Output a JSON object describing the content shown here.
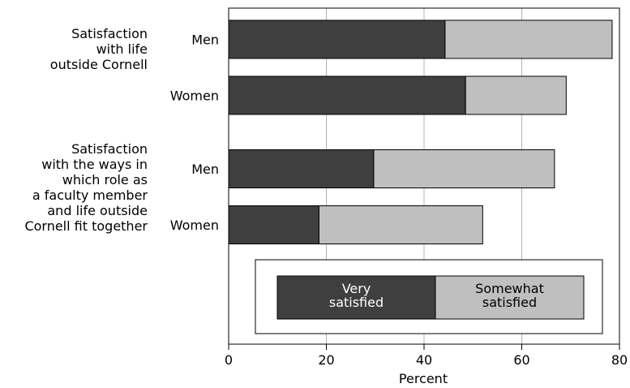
{
  "chart_data": {
    "type": "bar",
    "orientation": "horizontal",
    "stacked": true,
    "xlabel": "Percent",
    "xlim": [
      0,
      80
    ],
    "xticks": [
      "0",
      "20",
      "40",
      "60",
      "80"
    ],
    "grid": true,
    "groups": [
      {
        "label_lines": [
          "Satisfaction",
          "with life",
          "outside Cornell"
        ],
        "categories": [
          "Men",
          "Women"
        ]
      },
      {
        "label_lines": [
          "Satisfaction",
          "with the ways in",
          "which role as",
          "a faculty member",
          "and life outside",
          "Cornell fit together"
        ],
        "categories": [
          "Men",
          "Women"
        ]
      }
    ],
    "series": [
      {
        "name": "Very satisfied",
        "legend_lines": [
          "Very",
          "satisfied"
        ],
        "color": "#3f3f3f",
        "values": [
          44.3,
          48.5,
          29.7,
          18.5
        ]
      },
      {
        "name": "Somewhat satisfied",
        "legend_lines": [
          "Somewhat",
          "satisfied"
        ],
        "color": "#bfbfbf",
        "values": [
          34.2,
          20.6,
          37.0,
          33.5
        ]
      }
    ],
    "legend_position": "inside-bottom"
  }
}
